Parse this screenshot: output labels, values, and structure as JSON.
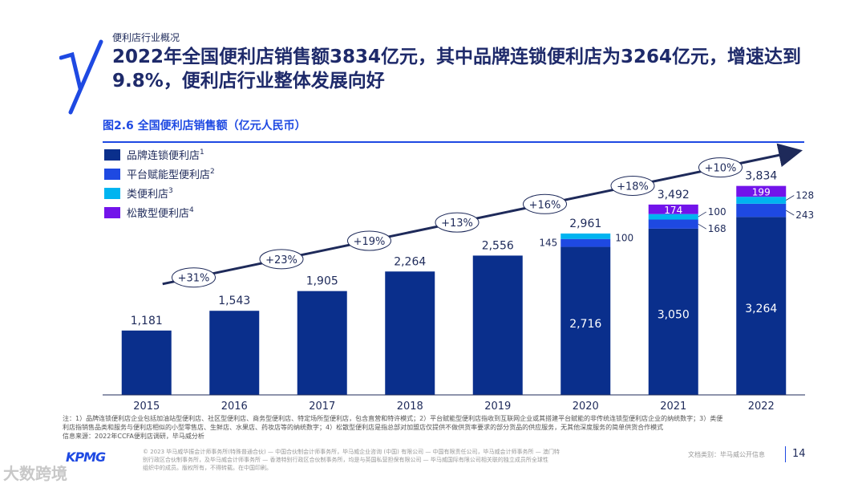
{
  "header": {
    "section_label": "便利店行业概况",
    "headline": "2022年全国便利店销售额3834亿元，其中品牌连锁便利店为3264亿元，增速达到9.8%，便利店行业整体发展向好"
  },
  "figure_title": "图2.6 全国便利店销售额（亿元人民币）",
  "colors": {
    "brand": "#0a2f8c",
    "platform": "#1e49e2",
    "category": "#00b4f0",
    "loose": "#7213ea",
    "arrow": "#1e2a5a"
  },
  "chart_data": {
    "type": "bar",
    "stacked": true,
    "categories": [
      "2015",
      "2016",
      "2017",
      "2018",
      "2019",
      "2020",
      "2021",
      "2022"
    ],
    "series": [
      {
        "name": "品牌连锁便利店",
        "superscript": "1",
        "color": "#0a2f8c",
        "values": [
          1181,
          1543,
          1905,
          2264,
          2556,
          2716,
          3050,
          3264
        ]
      },
      {
        "name": "平台赋能型便利店",
        "superscript": "2",
        "color": "#1e49e2",
        "values": [
          0,
          0,
          0,
          0,
          0,
          145,
          168,
          243
        ]
      },
      {
        "name": "类便利店",
        "superscript": "3",
        "color": "#00b4f0",
        "values": [
          0,
          0,
          0,
          0,
          0,
          100,
          100,
          128
        ]
      },
      {
        "name": "松散型便利店",
        "superscript": "4",
        "color": "#7213ea",
        "values": [
          0,
          0,
          0,
          0,
          0,
          0,
          174,
          199
        ]
      }
    ],
    "totals": [
      1181,
      1543,
      1905,
      2264,
      2556,
      2961,
      3492,
      3834
    ],
    "total_labels": [
      "1,181",
      "1,543",
      "1,905",
      "2,264",
      "2,556",
      "2,961",
      "3,492",
      "3,834"
    ],
    "segment_labels": {
      "2020": {
        "brand": "2,716",
        "platform": "145",
        "category": "100"
      },
      "2021": {
        "brand": "3,050",
        "platform": "168",
        "category": "100",
        "loose": "174"
      },
      "2022": {
        "brand": "3,264",
        "platform": "243",
        "category": "128",
        "loose": "199"
      }
    },
    "growth_labels": [
      "+31%",
      "+23%",
      "+19%",
      "+13%",
      "+16%",
      "+18%",
      "+10%"
    ],
    "ylim": [
      0,
      4300
    ],
    "legend_position": "top-left",
    "grid": false
  },
  "notes": {
    "line1": "注：1）品牌连锁便利店企业包括加油站型便利店、社区型便利店、商务型便利店、特定场所型便利店，包含直营和特许模式；2）平台赋能型便利店指收到互联网企业或其搭建平台赋能的非传统连锁型便利店企业的纳统数字；3）类便",
    "line2": "利店指销售品类和服务与便利店相似的小型零售店、生鲜店、水果店、药妆店等的纳统数字；4）松散型便利店是指总部对加盟店仅提供不做供货率要求的部分货品的供应服务，无其他深度服务的简单供货合作模式",
    "source": "信息来源：2022年CCFA便利店调研，毕马威分析"
  },
  "footer": {
    "line1": "© 2023 毕马威华振会计师事务所(特殊普通合伙) — 中国合伙制会计师事务所，毕马威企业咨询 (中国) 有限公司 — 中国有限责任公司，毕马威会计师事务所 — 澳门特",
    "line2": "别行政区合伙制事务所，及毕马威会计师事务所 — 香港特别行政区合伙制事务所，均是与英国私营担保有限公司 — 毕马威国际有限公司相关联的独立成员所全球性",
    "line3": "组织中的成员。版权所有，不得转载。在中国印刷。",
    "logo": "KPMG",
    "doc_class": "文档类别：毕马威公开信息",
    "page_number": "14",
    "watermark": "大数跨境"
  }
}
